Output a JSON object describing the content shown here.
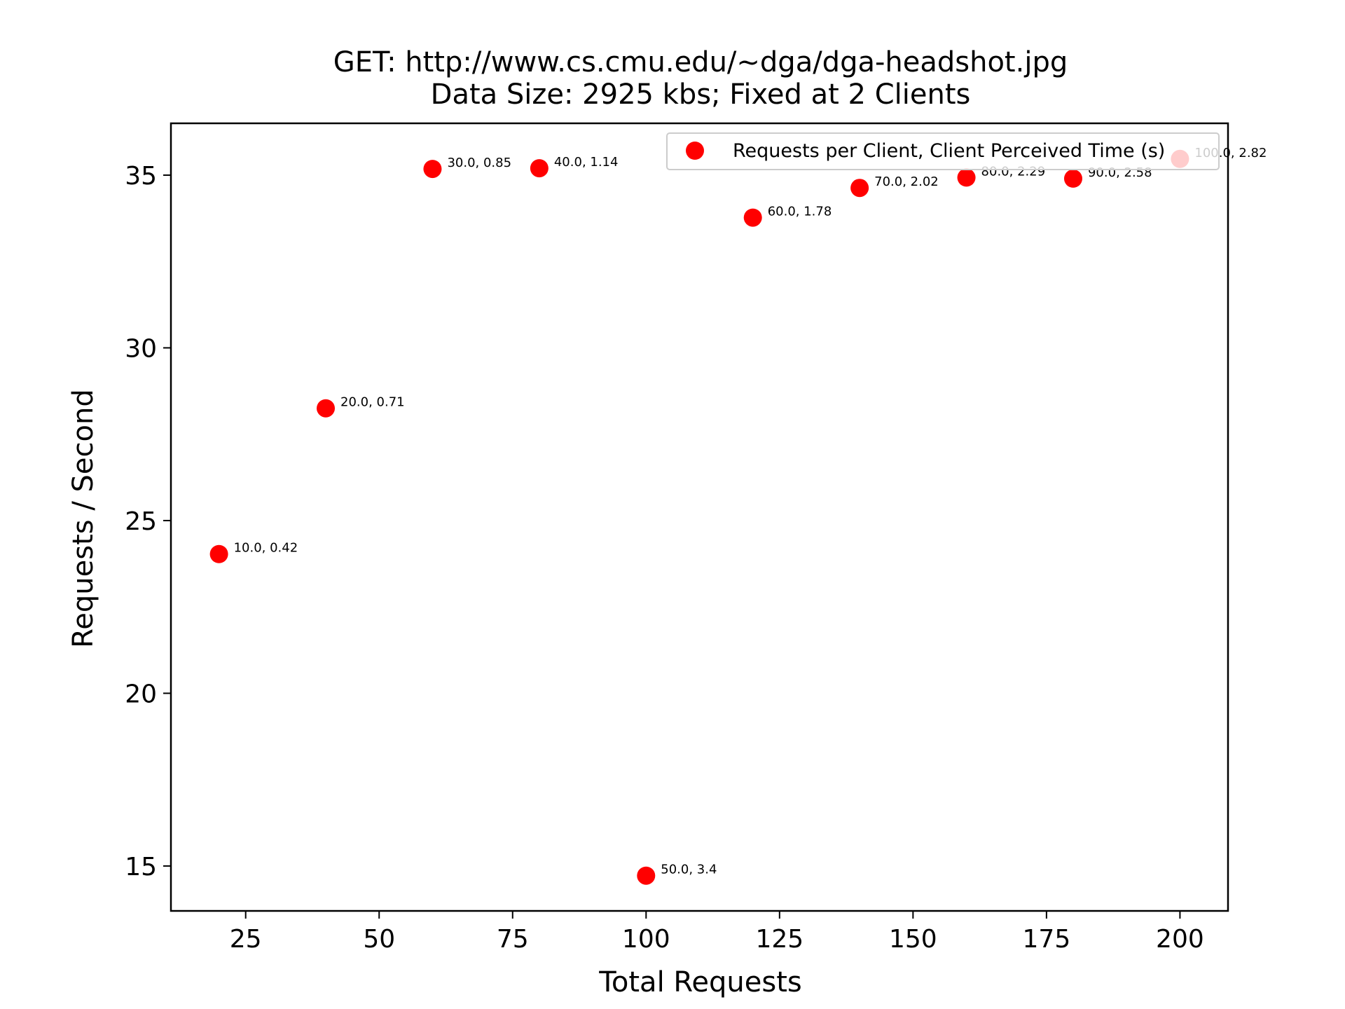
{
  "chart_data": {
    "type": "scatter",
    "title": "GET: http://www.cs.cmu.edu/~dga/dga-headshot.jpg",
    "subtitle": "Data Size: 2925 kbs; Fixed at 2 Clients",
    "xlabel": "Total Requests",
    "ylabel": "Requests / Second",
    "xlim": [
      11,
      209
    ],
    "ylim": [
      13.7,
      36.5
    ],
    "xticks": [
      25,
      50,
      75,
      100,
      125,
      150,
      175,
      200
    ],
    "yticks": [
      15,
      20,
      25,
      30,
      35
    ],
    "grid": false,
    "legend": {
      "position": "top-right",
      "entries": [
        "Requests per Client, Client Perceived Time (s)"
      ]
    },
    "series": [
      {
        "name": "Requests per Client, Client Perceived Time (s)",
        "color": "#ff0000",
        "points": [
          {
            "x": 20,
            "y": 24.03,
            "label": "10.0, 0.42"
          },
          {
            "x": 40,
            "y": 28.25,
            "label": "20.0, 0.71"
          },
          {
            "x": 60,
            "y": 35.18,
            "label": "30.0, 0.85"
          },
          {
            "x": 80,
            "y": 35.2,
            "label": "40.0, 1.14"
          },
          {
            "x": 100,
            "y": 14.72,
            "label": "50.0, 3.4"
          },
          {
            "x": 120,
            "y": 33.77,
            "label": "60.0, 1.78"
          },
          {
            "x": 140,
            "y": 34.63,
            "label": "70.0, 2.02"
          },
          {
            "x": 160,
            "y": 34.93,
            "label": "80.0, 2.29"
          },
          {
            "x": 180,
            "y": 34.9,
            "label": "90.0, 2.58"
          },
          {
            "x": 200,
            "y": 35.47,
            "label": "100.0, 2.82"
          }
        ]
      }
    ]
  }
}
